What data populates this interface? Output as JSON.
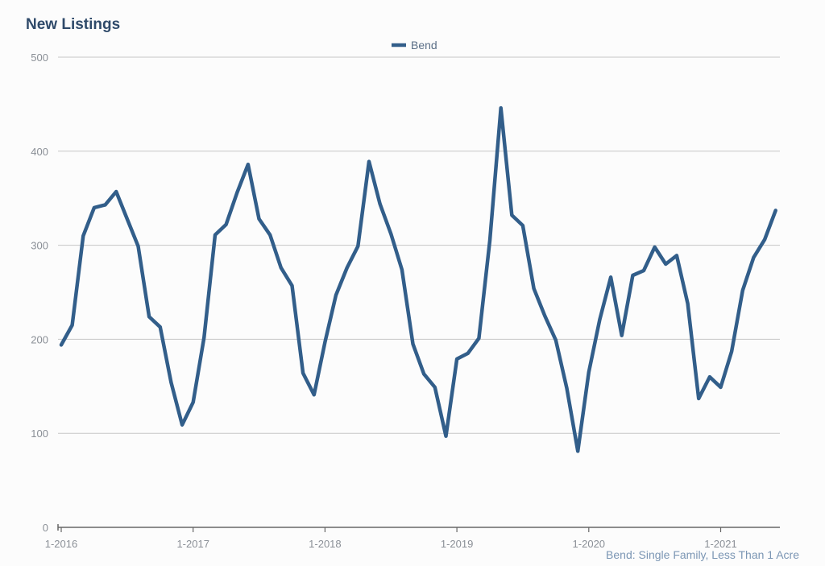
{
  "title": "New Listings",
  "footnote": "Bend: Single Family, Less Than 1 Acre",
  "colors": {
    "series": "#325e8a",
    "grid": "#c6c6c6",
    "axis": "#666666",
    "text": "#8a8f96",
    "background": "#fcfcfc"
  },
  "chart_data": {
    "type": "line",
    "title": "New Listings",
    "xlabel": "",
    "ylabel": "",
    "ylim": [
      0,
      500
    ],
    "yticks": [
      0,
      100,
      200,
      300,
      400,
      500
    ],
    "xticks": [
      "1-2016",
      "1-2017",
      "1-2018",
      "1-2019",
      "1-2020",
      "1-2021"
    ],
    "grid": true,
    "legend": "top-center",
    "x_start": "1-2016",
    "x_frequency": "monthly",
    "series": [
      {
        "name": "Bend",
        "values": [
          194,
          215,
          310,
          340,
          343,
          357,
          328,
          299,
          224,
          213,
          154,
          109,
          133,
          202,
          311,
          322,
          356,
          386,
          328,
          311,
          276,
          257,
          164,
          141,
          197,
          247,
          276,
          299,
          389,
          344,
          312,
          274,
          195,
          163,
          149,
          97,
          179,
          185,
          201,
          305,
          446,
          332,
          321,
          254,
          225,
          199,
          148,
          81,
          165,
          221,
          266,
          204,
          268,
          273,
          298,
          280,
          289,
          238,
          137,
          160,
          149,
          187,
          252,
          287,
          306,
          337
        ]
      }
    ]
  }
}
